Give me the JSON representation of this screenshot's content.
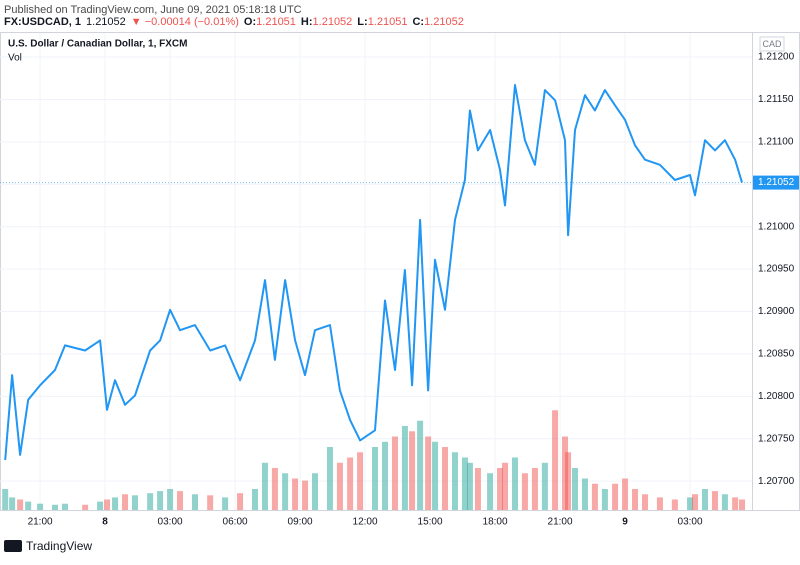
{
  "published": "Published on TradingView.com, June 09, 2021 05:18:18 UTC",
  "legend_bar": {
    "symbol": "FX:USDCAD, 1",
    "last": "1.21052",
    "change": "▼ −0.00014 (−0.01%)",
    "ohlc": [
      {
        "label": "O:",
        "value": "1.21051"
      },
      {
        "label": "H:",
        "value": "1.21052"
      },
      {
        "label": "L:",
        "value": "1.21051"
      },
      {
        "label": "C:",
        "value": "1.21052"
      }
    ]
  },
  "currency": "CAD",
  "brand": "TradingView",
  "chart_data": {
    "type": "line",
    "x": [
      -4.61,
      -4.29,
      -3.92,
      -3.55,
      -3.0,
      -2.31,
      -1.85,
      -0.92,
      -0.23,
      0.09,
      0.46,
      0.92,
      1.38,
      2.08,
      2.54,
      3.0,
      3.46,
      4.15,
      4.85,
      5.54,
      6.23,
      6.92,
      7.38,
      7.84,
      8.31,
      8.77,
      9.23,
      9.69,
      10.38,
      10.84,
      11.31,
      11.77,
      12.46,
      12.92,
      13.38,
      13.84,
      14.17,
      14.54,
      14.91,
      15.23,
      15.69,
      16.15,
      16.61,
      16.84,
      17.21,
      17.77,
      18.23,
      18.46,
      18.92,
      19.38,
      19.84,
      20.3,
      20.77,
      21.23,
      21.37,
      21.69,
      22.15,
      22.61,
      23.07,
      23.54,
      24.0,
      24.46,
      24.92,
      25.61,
      26.3,
      27.0,
      27.23,
      27.69,
      28.15,
      28.61,
      29.08,
      29.4
    ],
    "series": [
      {
        "name": "U.S. Dollar / Canadian Dollar, 1, FXCM",
        "color": "#2196f3",
        "values": [
          1.20725,
          1.20825,
          1.20731,
          1.20796,
          1.20813,
          1.20831,
          1.2086,
          1.20854,
          1.20866,
          1.20784,
          1.20819,
          1.2079,
          1.20801,
          1.20854,
          1.20866,
          1.20902,
          1.20878,
          1.20884,
          1.20854,
          1.2086,
          1.20819,
          1.20866,
          1.20937,
          1.20843,
          1.20937,
          1.20866,
          1.20825,
          1.20878,
          1.20884,
          1.20807,
          1.20772,
          1.20748,
          1.2076,
          1.20913,
          1.20831,
          1.20949,
          1.20813,
          1.21008,
          1.20807,
          1.20961,
          1.20902,
          1.21008,
          1.21055,
          1.21137,
          1.2109,
          1.21114,
          1.21067,
          1.21025,
          1.21167,
          1.21102,
          1.21073,
          1.21161,
          1.21149,
          1.21102,
          1.2099,
          1.21114,
          1.21155,
          1.21137,
          1.21161,
          1.21143,
          1.21126,
          1.21096,
          1.21079,
          1.21073,
          1.21055,
          1.21061,
          1.21037,
          1.21102,
          1.2109,
          1.21102,
          1.21079,
          1.21052
        ]
      },
      {
        "name": "Vol",
        "axis": "volume",
        "up_color": "#26a69a",
        "down_color": "#ef5350",
        "values": [
          20,
          12,
          10,
          8,
          6,
          5,
          6,
          5,
          8,
          10,
          12,
          15,
          14,
          16,
          18,
          20,
          18,
          15,
          14,
          12,
          16,
          20,
          45,
          40,
          35,
          30,
          28,
          35,
          60,
          45,
          50,
          55,
          60,
          65,
          70,
          80,
          75,
          85,
          70,
          65,
          60,
          55,
          50,
          45,
          40,
          35,
          40,
          45,
          50,
          35,
          40,
          45,
          95,
          70,
          55,
          40,
          30,
          25,
          20,
          25,
          30,
          20,
          15,
          12,
          10,
          12,
          15,
          20,
          18,
          15,
          12,
          10
        ]
      }
    ],
    "xlim": [
      -4.85,
      29.86
    ],
    "ylim": [
      1.20666,
      1.21226
    ],
    "volume_lim": [
      0,
      100
    ],
    "xticks": [
      {
        "value": -3,
        "label": "21:00"
      },
      {
        "value": 0,
        "label": "8"
      },
      {
        "value": 3,
        "label": "03:00"
      },
      {
        "value": 6,
        "label": "06:00"
      },
      {
        "value": 9,
        "label": "09:00"
      },
      {
        "value": 12,
        "label": "12:00"
      },
      {
        "value": 15,
        "label": "15:00"
      },
      {
        "value": 18,
        "label": "18:00"
      },
      {
        "value": 21,
        "label": "21:00"
      },
      {
        "value": 24,
        "label": "9"
      },
      {
        "value": 27,
        "label": "03:00"
      }
    ],
    "yticks": [
      {
        "value": 1.207,
        "label": "1.20700"
      },
      {
        "value": 1.2075,
        "label": "1.20750"
      },
      {
        "value": 1.208,
        "label": "1.20800"
      },
      {
        "value": 1.2085,
        "label": "1.20850"
      },
      {
        "value": 1.209,
        "label": "1.20900"
      },
      {
        "value": 1.2095,
        "label": "1.20950"
      },
      {
        "value": 1.21,
        "label": "1.21000"
      },
      {
        "value": 1.2105,
        "label": "1.21050"
      },
      {
        "value": 1.211,
        "label": "1.21100"
      },
      {
        "value": 1.2115,
        "label": "1.21150"
      },
      {
        "value": 1.212,
        "label": "1.21200"
      }
    ],
    "last_price": {
      "value": 1.21052,
      "label": "1.21052"
    },
    "grid": true
  }
}
